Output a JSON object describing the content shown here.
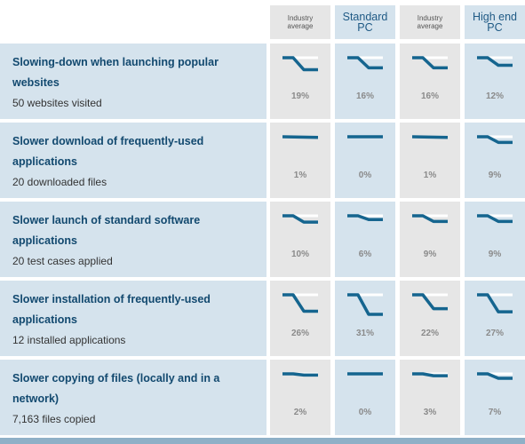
{
  "colors": {
    "industry_column_bg": "#e6e6e6",
    "pc_column_bg": "#d5e3ed",
    "label_bg": "#d5e3ed",
    "sparkline": "#15658f",
    "title_text": "#12496f",
    "percent_text": "#8a8a8a",
    "bottom_bar": "#8fb0c7"
  },
  "header": {
    "columns": [
      {
        "label": "Industry average",
        "style": "small",
        "kind": "industry"
      },
      {
        "label": "Standard PC",
        "style": "big",
        "kind": "pc"
      },
      {
        "label": "Industry average",
        "style": "small",
        "kind": "industry"
      },
      {
        "label": "High end PC",
        "style": "big",
        "kind": "pc"
      }
    ]
  },
  "rows": [
    {
      "title": "Slowing-down when launching popular websites",
      "subtitle": "50 websites visited",
      "values": [
        {
          "percent": "19%",
          "slowdown": 0.19
        },
        {
          "percent": "16%",
          "slowdown": 0.16
        },
        {
          "percent": "16%",
          "slowdown": 0.16
        },
        {
          "percent": "12%",
          "slowdown": 0.12
        }
      ]
    },
    {
      "title": "Slower download of frequently-used applications",
      "subtitle": "20 downloaded files",
      "values": [
        {
          "percent": "1%",
          "slowdown": 0.01
        },
        {
          "percent": "0%",
          "slowdown": 0.0
        },
        {
          "percent": "1%",
          "slowdown": 0.01
        },
        {
          "percent": "9%",
          "slowdown": 0.09
        }
      ]
    },
    {
      "title": "Slower launch of standard software applications",
      "subtitle": "20 test cases applied",
      "values": [
        {
          "percent": "10%",
          "slowdown": 0.1
        },
        {
          "percent": "6%",
          "slowdown": 0.06
        },
        {
          "percent": "9%",
          "slowdown": 0.09
        },
        {
          "percent": "9%",
          "slowdown": 0.09
        }
      ]
    },
    {
      "title": "Slower installation of frequently-used applications",
      "subtitle": "12 installed applications",
      "values": [
        {
          "percent": "26%",
          "slowdown": 0.26
        },
        {
          "percent": "31%",
          "slowdown": 0.31
        },
        {
          "percent": "22%",
          "slowdown": 0.22
        },
        {
          "percent": "27%",
          "slowdown": 0.27
        }
      ]
    },
    {
      "title": "Slower copying of files (locally and in a network)",
      "subtitle": "7,163 files copied",
      "values": [
        {
          "percent": "2%",
          "slowdown": 0.02
        },
        {
          "percent": "0%",
          "slowdown": 0.0
        },
        {
          "percent": "3%",
          "slowdown": 0.03
        },
        {
          "percent": "7%",
          "slowdown": 0.07
        }
      ]
    }
  ]
}
